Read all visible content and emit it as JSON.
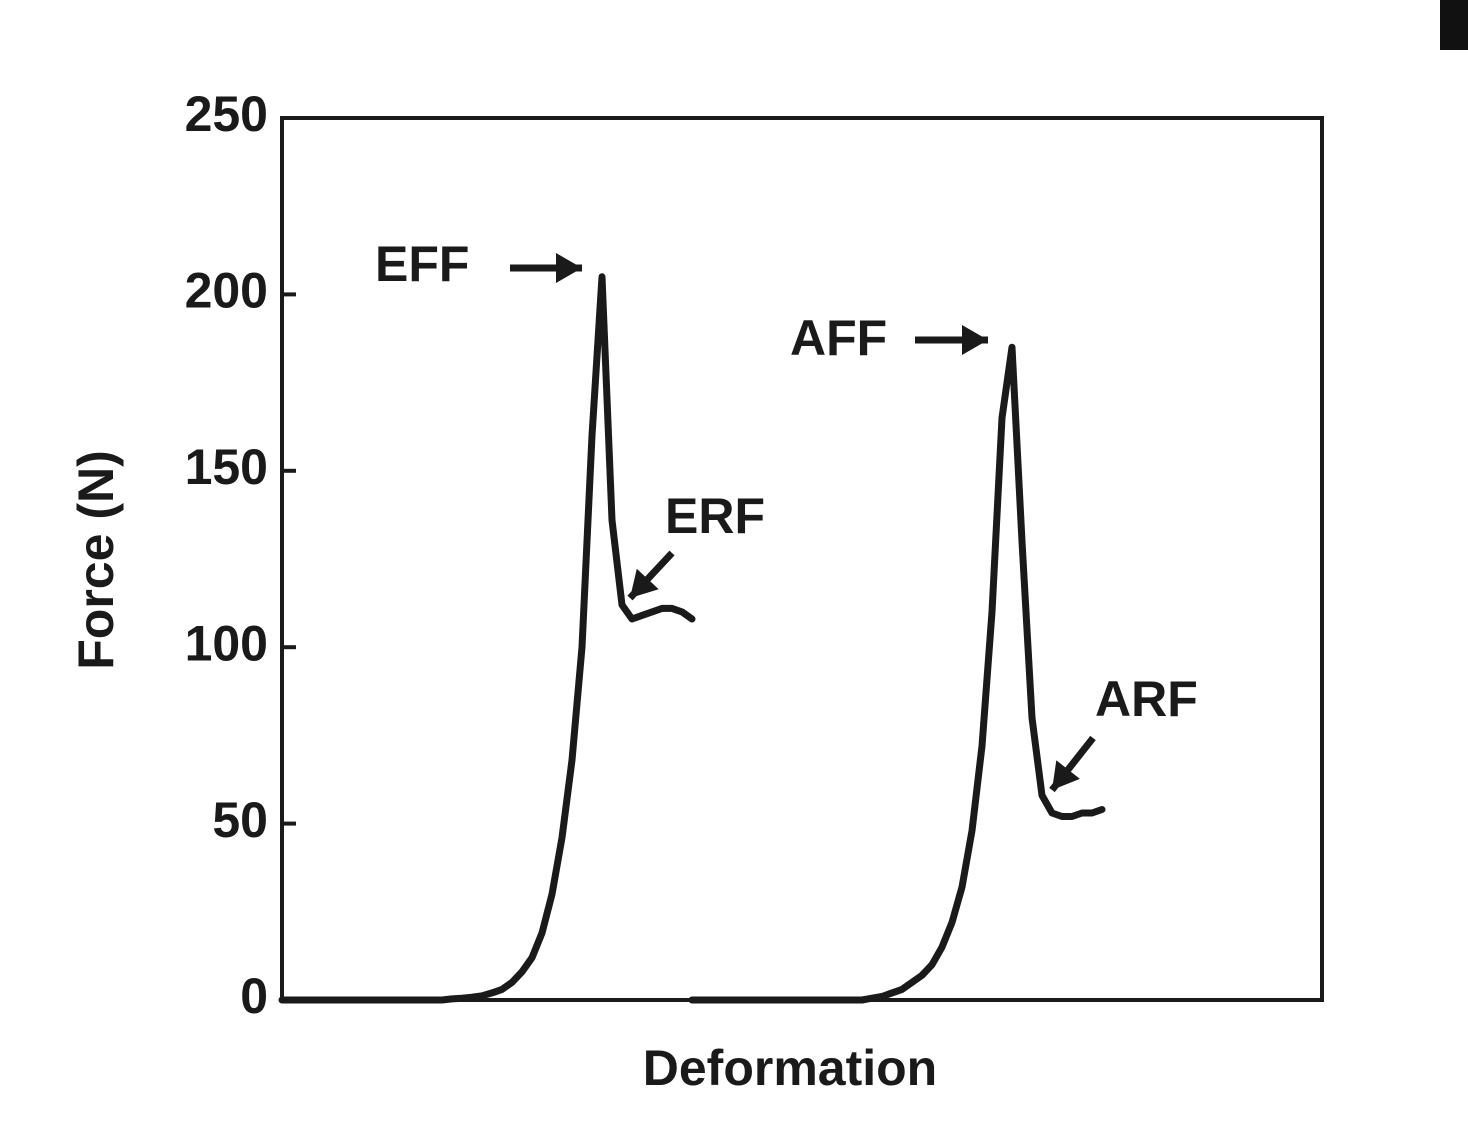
{
  "chart_data": {
    "type": "line",
    "x_label": "Deformation",
    "y_label": "Force (N)",
    "ylim": [
      0,
      250
    ],
    "yticks": [
      0,
      50,
      100,
      150,
      200,
      250
    ],
    "categories": [
      null,
      null,
      null,
      null,
      null,
      null,
      null,
      null,
      null,
      null,
      null,
      null,
      null,
      null,
      null,
      null,
      null,
      null,
      null,
      null,
      null,
      null,
      null,
      null,
      null,
      null,
      null,
      null,
      null,
      null,
      null,
      null,
      null,
      null,
      null,
      null,
      null,
      null,
      null,
      null,
      null,
      null,
      null,
      null,
      null,
      null,
      null,
      null,
      null,
      null,
      null,
      null,
      null,
      null,
      null,
      null,
      null,
      null,
      null,
      null,
      null,
      null,
      null,
      null,
      null,
      null,
      null,
      null,
      null,
      null,
      null,
      null,
      null,
      null,
      null,
      null,
      null,
      null,
      null,
      null,
      null,
      null,
      null,
      null,
      null,
      null,
      null,
      null,
      null,
      null,
      null,
      null,
      null,
      null,
      null,
      null,
      null,
      null,
      null,
      null,
      null,
      null,
      null,
      null,
      null
    ],
    "series": [
      {
        "color": "#1a1a1a",
        "values": [
          0,
          0,
          0,
          0,
          0,
          0,
          0,
          0,
          0,
          0,
          0,
          0,
          0,
          0,
          0,
          0,
          0,
          0.3,
          0.5,
          0.8,
          1.2,
          2,
          3,
          5,
          8,
          12,
          19,
          30,
          46,
          68,
          100,
          160,
          205,
          136,
          112,
          108,
          109,
          110,
          111,
          111,
          110,
          108,
          null,
          null,
          null,
          null,
          null,
          null,
          null,
          null,
          null,
          null,
          null,
          null,
          null,
          null,
          null,
          null,
          null,
          null,
          null,
          null,
          null,
          null,
          null,
          null,
          null,
          null,
          null,
          null,
          null,
          null,
          null,
          null,
          null,
          null,
          null,
          null,
          null,
          null,
          null,
          null,
          null,
          null,
          null,
          null,
          null,
          null,
          null,
          null,
          null,
          null,
          null,
          null,
          null,
          null,
          null,
          null,
          null,
          null,
          null,
          null,
          null,
          null,
          null
        ]
      },
      {
        "color": "#1a1a1a",
        "values": [
          null,
          null,
          null,
          null,
          null,
          null,
          null,
          null,
          null,
          null,
          null,
          null,
          null,
          null,
          null,
          null,
          null,
          null,
          null,
          null,
          null,
          null,
          null,
          null,
          null,
          null,
          null,
          null,
          null,
          null,
          null,
          null,
          null,
          null,
          null,
          null,
          null,
          null,
          null,
          null,
          null,
          0,
          0,
          0,
          0,
          0,
          0,
          0,
          0,
          0,
          0,
          0,
          0,
          0,
          0,
          0,
          0,
          0,
          0,
          0.5,
          1,
          2,
          3,
          5,
          7,
          10,
          15,
          22,
          32,
          48,
          72,
          110,
          165,
          185,
          130,
          80,
          58,
          53,
          52,
          52,
          53,
          53,
          54,
          null,
          null,
          null,
          null,
          null,
          null,
          null,
          null,
          null,
          null,
          null,
          null,
          null,
          null,
          null,
          null,
          null,
          null,
          null,
          null,
          null,
          null
        ]
      }
    ],
    "annotations": [
      "EFF",
      "ERF",
      "AFF",
      "ARF"
    ]
  }
}
